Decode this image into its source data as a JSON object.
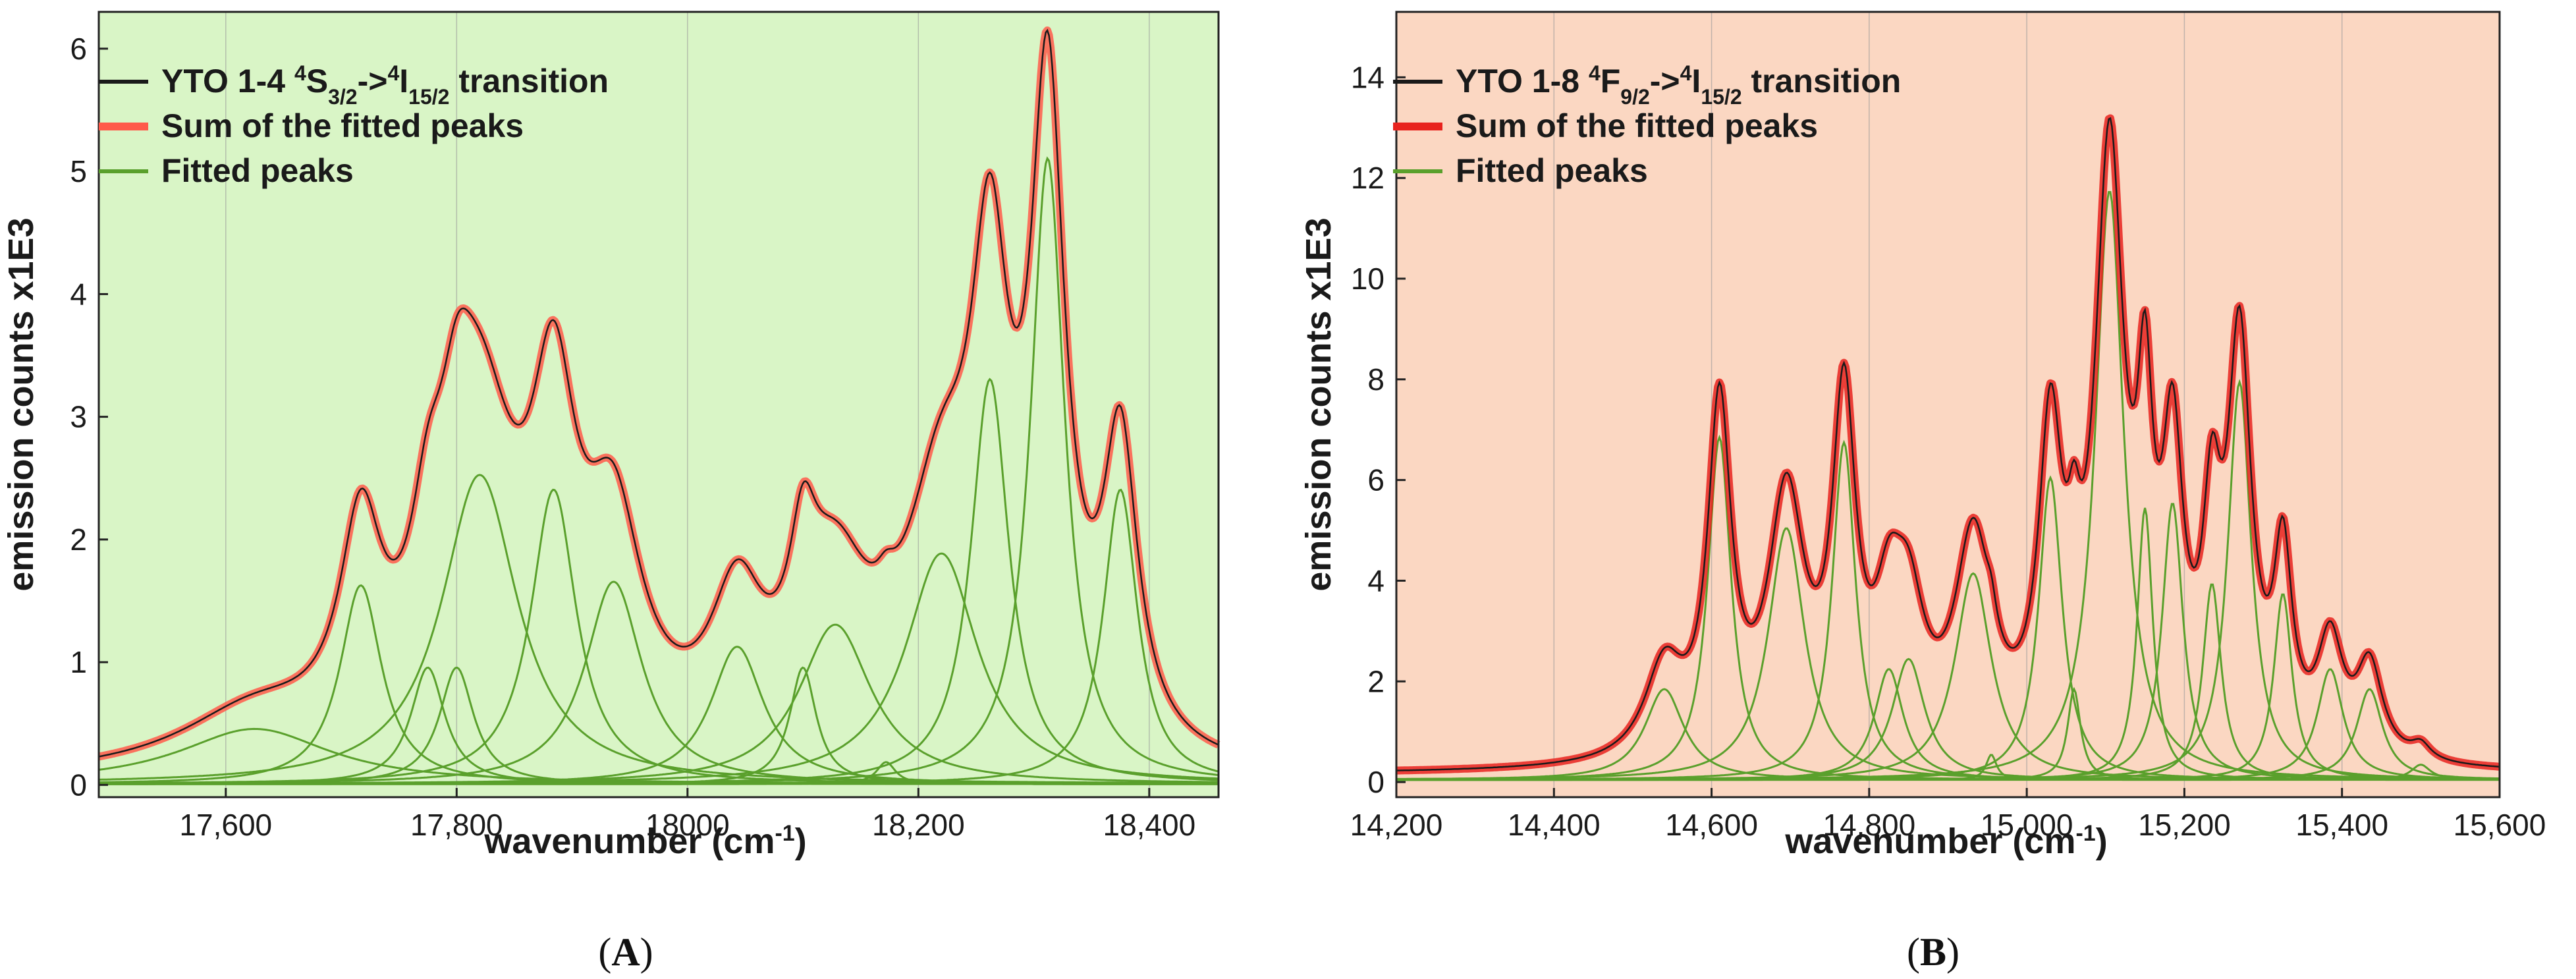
{
  "chart_data": [
    {
      "type": "line",
      "panel_label": "A",
      "background": "#d9f5c6",
      "xlabel": "wavenumber (cm",
      "xlabel_sup": "-1",
      "xlabel_end": ")",
      "ylabel": "emission counts x1E3",
      "xlim": [
        17490,
        18460
      ],
      "ylim": [
        -0.1,
        6.3
      ],
      "xticks": [
        17600,
        17800,
        18000,
        18200,
        18400
      ],
      "xtick_labels": [
        "17,600",
        "17,800",
        "18000",
        "18,200",
        "18,400"
      ],
      "yticks": [
        0,
        1,
        2,
        3,
        4,
        5,
        6
      ],
      "ytick_labels": [
        "0",
        "1",
        "2",
        "3",
        "4",
        "5",
        "6"
      ],
      "legend": {
        "position": "top-left",
        "entries": [
          {
            "parts": [
              {
                "t": "YTO 1-4 "
              },
              {
                "t": "4",
                "s": "sup"
              },
              {
                "t": "S"
              },
              {
                "t": "3/2",
                "s": "sub"
              },
              {
                "t": "->"
              },
              {
                "t": "4",
                "s": "sup"
              },
              {
                "t": "I"
              },
              {
                "t": "15/2",
                "s": "sub"
              },
              {
                "t": " transition"
              }
            ],
            "color": "#1a1a1a"
          },
          {
            "parts": [
              {
                "t": "Sum of the fitted peaks"
              }
            ],
            "color": "#ff5a4a"
          },
          {
            "parts": [
              {
                "t": "Fitted peaks"
              }
            ],
            "color": "#5aa02c"
          }
        ]
      },
      "baseline": 0.02,
      "peaks": [
        {
          "center": 17625,
          "height": 0.45,
          "width": 80
        },
        {
          "center": 17717,
          "height": 1.62,
          "width": 22
        },
        {
          "center": 17775,
          "height": 0.95,
          "width": 18
        },
        {
          "center": 17800,
          "height": 0.95,
          "width": 18
        },
        {
          "center": 17820,
          "height": 2.52,
          "width": 40
        },
        {
          "center": 17884,
          "height": 2.4,
          "width": 24
        },
        {
          "center": 17936,
          "height": 1.65,
          "width": 30
        },
        {
          "center": 18043,
          "height": 1.12,
          "width": 28
        },
        {
          "center": 18100,
          "height": 0.95,
          "width": 14
        },
        {
          "center": 18128,
          "height": 1.3,
          "width": 38
        },
        {
          "center": 18172,
          "height": 0.18,
          "width": 10
        },
        {
          "center": 18220,
          "height": 1.88,
          "width": 38
        },
        {
          "center": 18262,
          "height": 3.3,
          "width": 20
        },
        {
          "center": 18312,
          "height": 5.1,
          "width": 18
        },
        {
          "center": 18375,
          "height": 2.4,
          "width": 18
        }
      ]
    },
    {
      "type": "line",
      "panel_label": "B",
      "background": "#fbd7c2",
      "xlabel": "wavenumber (cm",
      "xlabel_sup": "-1",
      "xlabel_end": ")",
      "ylabel": "emission counts x1E3",
      "xlim": [
        14200,
        15600
      ],
      "ylim": [
        -0.3,
        15.3
      ],
      "xticks": [
        14200,
        14400,
        14600,
        14800,
        15000,
        15200,
        15400,
        15600
      ],
      "xtick_labels": [
        "14,200",
        "14,400",
        "14,600",
        "14,800",
        "15,000",
        "15,200",
        "15,400",
        "15,600"
      ],
      "yticks": [
        0,
        2,
        4,
        6,
        8,
        10,
        12,
        14
      ],
      "ytick_labels": [
        "0",
        "2",
        "4",
        "6",
        "8",
        "10",
        "12",
        "14"
      ],
      "legend": {
        "position": "top-left",
        "entries": [
          {
            "parts": [
              {
                "t": "YTO 1-8 "
              },
              {
                "t": "4",
                "s": "sup"
              },
              {
                "t": "F"
              },
              {
                "t": "9/2",
                "s": "sub"
              },
              {
                "t": "->"
              },
              {
                "t": "4",
                "s": "sup"
              },
              {
                "t": "I"
              },
              {
                "t": "15/2",
                "s": "sub"
              },
              {
                "t": " transition"
              }
            ],
            "color": "#1a1a1a"
          },
          {
            "parts": [
              {
                "t": "Sum of the fitted peaks"
              }
            ],
            "color": "#e8231e"
          },
          {
            "parts": [
              {
                "t": "Fitted peaks"
              }
            ],
            "color": "#5aa02c"
          }
        ]
      },
      "baseline": 0.15,
      "peaks": [
        {
          "center": 14540,
          "height": 1.8,
          "width": 30
        },
        {
          "center": 14610,
          "height": 6.8,
          "width": 18
        },
        {
          "center": 14695,
          "height": 5.0,
          "width": 28
        },
        {
          "center": 14768,
          "height": 6.7,
          "width": 18
        },
        {
          "center": 14825,
          "height": 2.2,
          "width": 22
        },
        {
          "center": 14850,
          "height": 2.4,
          "width": 25
        },
        {
          "center": 14932,
          "height": 4.1,
          "width": 28
        },
        {
          "center": 14955,
          "height": 0.5,
          "width": 8
        },
        {
          "center": 15030,
          "height": 6.0,
          "width": 18
        },
        {
          "center": 15060,
          "height": 1.8,
          "width": 10
        },
        {
          "center": 15105,
          "height": 11.7,
          "width": 22
        },
        {
          "center": 15150,
          "height": 5.4,
          "width": 12
        },
        {
          "center": 15185,
          "height": 5.5,
          "width": 16
        },
        {
          "center": 15235,
          "height": 3.9,
          "width": 14
        },
        {
          "center": 15270,
          "height": 7.9,
          "width": 18
        },
        {
          "center": 15325,
          "height": 3.7,
          "width": 14
        },
        {
          "center": 15385,
          "height": 2.2,
          "width": 20
        },
        {
          "center": 15435,
          "height": 1.8,
          "width": 20
        },
        {
          "center": 15500,
          "height": 0.3,
          "width": 15
        }
      ]
    }
  ],
  "captions": [
    "A",
    "B"
  ],
  "colors": {
    "measured": "#1a1a1a",
    "sum_a": "#ff5a4a",
    "sum_b": "#e8231e",
    "fitted": "#5aa02c",
    "grid": "#9a9a9a"
  }
}
